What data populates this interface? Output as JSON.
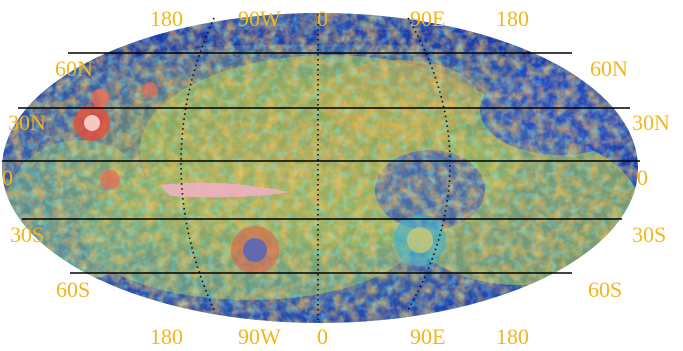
{
  "map": {
    "projection_grid": {
      "parallels": [
        "60N",
        "30N",
        "0",
        "30S",
        "60S"
      ],
      "meridians": [
        "180",
        "90W",
        "0",
        "90E",
        "180"
      ]
    },
    "labels": {
      "top_meridians": [
        "180",
        "90W",
        "0",
        "90E",
        "180"
      ],
      "bottom_meridians": [
        "180",
        "90W",
        "0",
        "90E",
        "180"
      ],
      "left_parallels": [
        "60N",
        "30N",
        "0",
        "30S",
        "60S"
      ],
      "right_parallels": [
        "60N",
        "30N",
        "0",
        "30S",
        "60S"
      ]
    },
    "colors": {
      "label": "#f2b61b",
      "ocean_base": "#1a3fb0",
      "grid_line": "#000000",
      "grid_dots": "#0a0a0a"
    }
  }
}
